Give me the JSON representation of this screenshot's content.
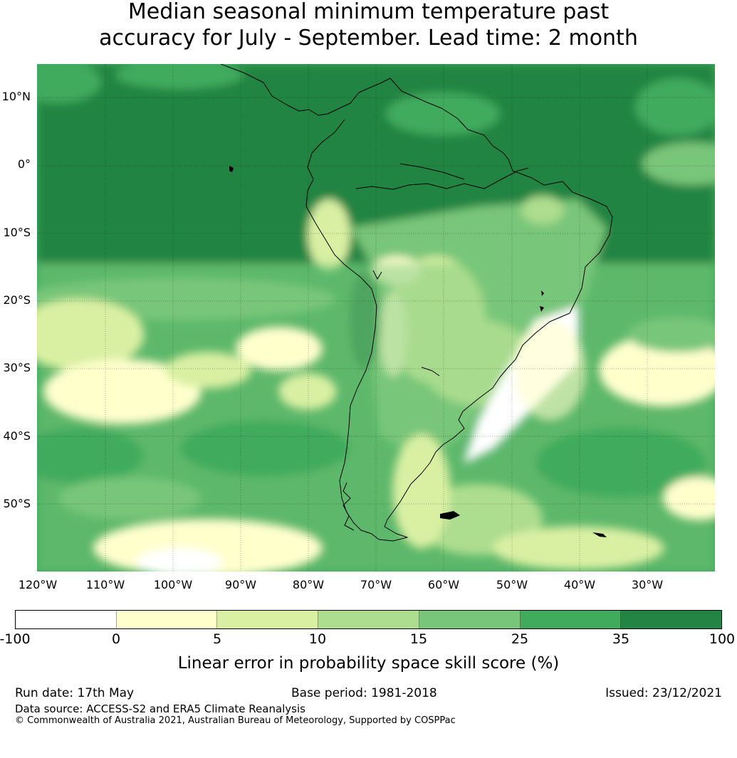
{
  "title": {
    "line1": "Median seasonal minimum temperature past",
    "line2": "accuracy for July - September. Lead time: 2 month"
  },
  "map": {
    "lat_labels": [
      "10°N",
      "0°",
      "10°S",
      "20°S",
      "30°S",
      "40°S",
      "50°S"
    ],
    "lon_labels": [
      "120°W",
      "110°W",
      "100°W",
      "90°W",
      "80°W",
      "70°W",
      "60°W",
      "50°W",
      "40°W",
      "30°W"
    ],
    "colors": {
      "ocean_base": "#41ab5d",
      "dark": "#238443",
      "mid": "#78c679",
      "light": "#addd8e",
      "pale": "#d9f0a3",
      "cream": "#ffffcc",
      "white": "#ffffff"
    }
  },
  "colorbar": {
    "ticks": [
      "-100",
      "0",
      "5",
      "10",
      "15",
      "25",
      "35",
      "100"
    ],
    "colors": [
      "#ffffff",
      "#ffffcc",
      "#d9f0a3",
      "#addd8e",
      "#78c679",
      "#41ab5d",
      "#238443"
    ],
    "label": "Linear error in probability space skill score (%)"
  },
  "footer": {
    "run_date": "Run date: 17th May",
    "base_period": "Base period: 1981-2018",
    "issued": "Issued: 23/12/2021",
    "data_source": "Data source: ACCESS-S2 and ERA5 Climate Reanalysis",
    "copyright": "© Commonwealth of Australia 2021, Australian Bureau of Meteorology, Supported by COSPPac"
  }
}
